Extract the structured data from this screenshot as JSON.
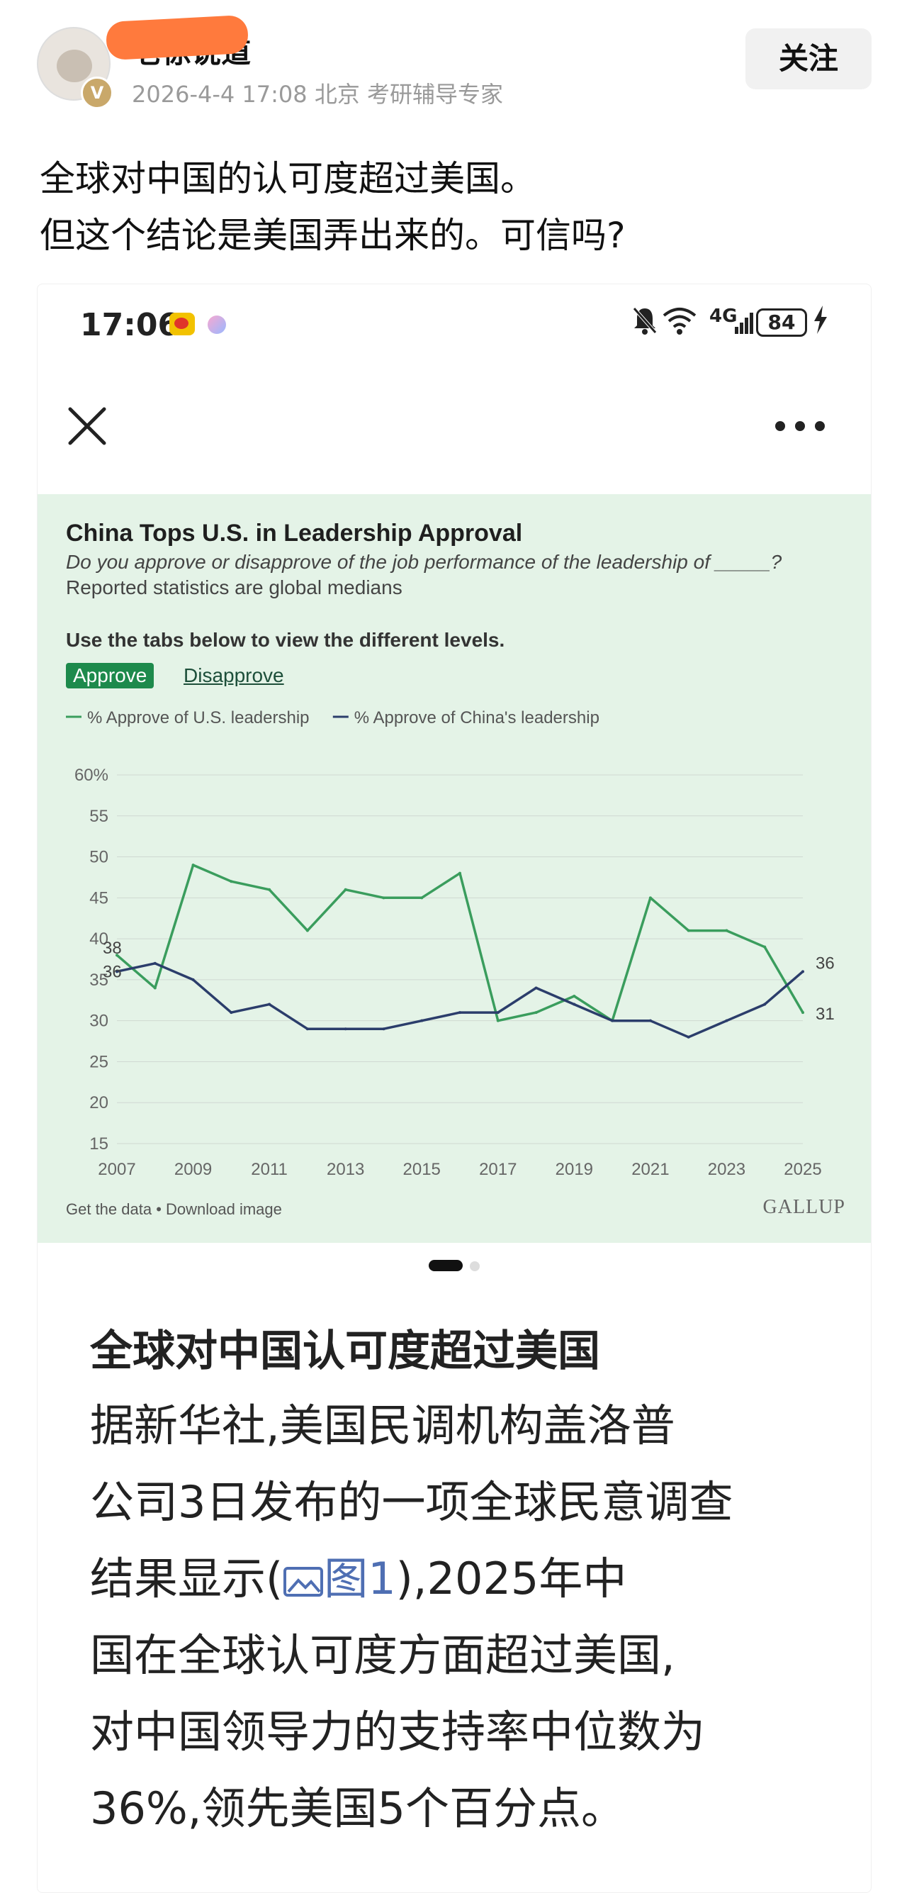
{
  "post": {
    "author": "老徐说道",
    "verified_badge": "V",
    "meta": "2026-4-4 17:08 北京 考研辅导专家",
    "follow_label": "关注",
    "text_lines": [
      "全球对中国的认可度超过美国。",
      "但这个结论是美国弄出来的。可信吗?"
    ]
  },
  "status_bar": {
    "time": "17:06",
    "network": "4G",
    "battery": "84",
    "icons": [
      "weibo-icon",
      "notification-dot-icon",
      "bell-muted-icon",
      "wifi-icon",
      "signal-icon",
      "battery-icon",
      "charging-icon"
    ]
  },
  "toolbar": {
    "icons": [
      "close-icon",
      "more-icon"
    ]
  },
  "chart": {
    "title": "China Tops U.S. in Leadership Approval",
    "subtitle": "Do you approve or disapprove of the job performance of the leadership of _____?",
    "subtitle2": "Reported statistics are global medians",
    "tabs_hint": "Use the tabs below to view the different levels.",
    "tab_approve": "Approve",
    "tab_disapprove": "Disapprove",
    "footer_left": "Get the data • Download image",
    "footer_right": "GALLUP"
  },
  "chart_data": {
    "type": "line",
    "x": [
      2007,
      2008,
      2009,
      2010,
      2011,
      2012,
      2013,
      2014,
      2015,
      2016,
      2017,
      2018,
      2019,
      2020,
      2021,
      2022,
      2023,
      2024,
      2025
    ],
    "x_tick_labels": [
      "2007",
      "2009",
      "2011",
      "2013",
      "2015",
      "2017",
      "2019",
      "2021",
      "2023",
      "2025"
    ],
    "y_tick_labels": [
      "60%",
      "55",
      "50",
      "45",
      "40",
      "35",
      "30",
      "25",
      "20",
      "15"
    ],
    "ylim": [
      15,
      60
    ],
    "grid": true,
    "legend_position": "top-left",
    "series": [
      {
        "name": "% Approve of U.S. leadership",
        "color": "#3a9d5d",
        "values": [
          38,
          34,
          49,
          47,
          46,
          41,
          46,
          45,
          45,
          48,
          30,
          31,
          33,
          30,
          45,
          41,
          41,
          39,
          31
        ],
        "start_label": "38",
        "end_label": "31"
      },
      {
        "name": "% Approve of China's leadership",
        "color": "#2b3d6b",
        "values": [
          36,
          37,
          35,
          31,
          32,
          29,
          29,
          29,
          30,
          31,
          31,
          34,
          32,
          30,
          30,
          28,
          30,
          32,
          36
        ],
        "start_label": "36",
        "end_label": "36"
      }
    ]
  },
  "pager": {
    "pages": 2,
    "active": 1
  },
  "article": {
    "title": "全球对中国认可度超过美国",
    "line1": "据新华社,美国民调机构盖洛普",
    "line2": "公司3日发布的一项全球民意调查",
    "line3_pre": "结果显示(",
    "line3_link": "图1",
    "line3_post": "),2025年中",
    "line4": "国在全球认可度方面超过美国,",
    "line5": "对中国领导力的支持率中位数为",
    "line6": "36%,领先美国5个百分点。"
  }
}
